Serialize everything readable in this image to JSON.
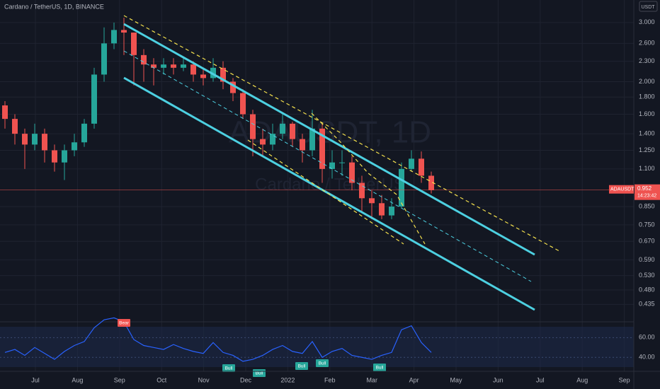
{
  "chart_data": [
    {
      "type": "candlestick",
      "title": "Cardano / TetherUS, 1D, BINANCE",
      "watermark": "ADAUSDT, 1D",
      "watermark_subtitle": "Cardano / TetherUS",
      "currency": "USDT",
      "symbol": "ADAUSDT",
      "countdown": "14:23:42",
      "up_color": "#26a69a",
      "down_color": "#ef5350",
      "log_scale": true,
      "grid": true,
      "open": [
        1.7,
        1.55,
        1.4,
        1.3,
        1.4,
        1.25,
        1.15,
        1.25,
        1.32,
        1.5,
        2.1,
        2.6,
        2.85,
        2.8,
        2.4,
        2.25,
        2.2,
        2.25,
        2.2,
        2.25,
        2.1,
        2.05,
        2.2,
        2.0,
        1.85,
        1.6,
        1.35,
        1.3,
        1.4,
        1.5,
        1.35,
        1.25,
        1.45,
        1.1,
        1.15,
        1.15,
        1.0,
        0.9,
        0.87,
        0.8,
        0.85,
        1.1,
        1.18,
        1.05
      ],
      "high": [
        1.75,
        1.6,
        1.45,
        1.5,
        1.45,
        1.3,
        1.3,
        1.4,
        1.55,
        2.2,
        2.9,
        3.0,
        3.1,
        2.8,
        2.5,
        2.35,
        2.35,
        2.35,
        2.35,
        2.3,
        2.2,
        2.35,
        2.3,
        2.05,
        1.9,
        1.65,
        1.45,
        1.5,
        1.6,
        1.52,
        1.4,
        1.65,
        1.5,
        1.25,
        1.25,
        1.2,
        1.05,
        0.95,
        0.92,
        0.9,
        1.15,
        1.25,
        1.24,
        1.08
      ],
      "low": [
        1.45,
        1.3,
        1.1,
        1.25,
        1.15,
        1.08,
        1.02,
        1.2,
        1.28,
        1.45,
        2.0,
        2.5,
        2.4,
        1.95,
        2.0,
        1.95,
        2.1,
        2.1,
        2.15,
        2.0,
        1.95,
        2.0,
        1.9,
        1.75,
        1.55,
        1.2,
        1.2,
        1.25,
        1.35,
        1.28,
        1.15,
        1.2,
        1.0,
        1.03,
        1.05,
        0.95,
        0.82,
        0.78,
        0.78,
        0.78,
        0.84,
        1.08,
        1.0,
        0.93
      ],
      "close": [
        1.55,
        1.4,
        1.3,
        1.4,
        1.25,
        1.15,
        1.25,
        1.32,
        1.5,
        2.1,
        2.6,
        2.85,
        2.8,
        2.4,
        2.25,
        2.2,
        2.25,
        2.2,
        2.25,
        2.1,
        2.05,
        2.2,
        2.0,
        1.85,
        1.6,
        1.35,
        1.3,
        1.4,
        1.5,
        1.35,
        1.25,
        1.45,
        1.1,
        1.15,
        1.15,
        1.0,
        0.9,
        0.87,
        0.8,
        0.85,
        1.1,
        1.18,
        1.05,
        0.952
      ],
      "ylim": [
        0.386,
        3.5
      ],
      "yticks": [
        {
          "value": 3,
          "label": "3.000"
        },
        {
          "value": 2.6,
          "label": "2.600"
        },
        {
          "value": 2.3,
          "label": "2.300"
        },
        {
          "value": 2,
          "label": "2.000"
        },
        {
          "value": 1.8,
          "label": "1.800"
        },
        {
          "value": 1.6,
          "label": "1.600"
        },
        {
          "value": 1.4,
          "label": "1.400"
        },
        {
          "value": 1.25,
          "label": "1.250"
        },
        {
          "value": 1.1,
          "label": "1.100"
        },
        {
          "value": 0.85,
          "label": "0.850"
        },
        {
          "value": 0.75,
          "label": "0.750"
        },
        {
          "value": 0.67,
          "label": "0.670"
        },
        {
          "value": 0.59,
          "label": "0.590"
        },
        {
          "value": 0.53,
          "label": "0.530"
        },
        {
          "value": 0.48,
          "label": "0.480"
        },
        {
          "value": 0.435,
          "label": "0.435"
        }
      ],
      "xtick_labels": [
        "Jul",
        "Aug",
        "Sep",
        "Oct",
        "Nov",
        "Dec",
        "2022",
        "Feb",
        "Mar",
        "Apr",
        "May",
        "Jun",
        "Jul",
        "Aug",
        "Sep"
      ]
    },
    {
      "type": "line",
      "color": "#2962ff",
      "values": [
        45,
        48,
        42,
        50,
        44,
        38,
        46,
        52,
        56,
        70,
        78,
        80,
        76,
        58,
        52,
        50,
        48,
        53,
        49,
        46,
        44,
        55,
        45,
        42,
        36,
        38,
        42,
        48,
        52,
        46,
        44,
        56,
        40,
        46,
        49,
        42,
        40,
        38,
        42,
        45,
        68,
        72,
        55,
        45
      ],
      "ylim": [
        28,
        76
      ],
      "yticks": [
        {
          "value": 60,
          "label": "60.00"
        },
        {
          "value": 40,
          "label": "40.00"
        }
      ],
      "signals": [
        "Bear",
        "Bull",
        "Bull",
        "Bull",
        "Bull",
        "Bull"
      ]
    }
  ]
}
